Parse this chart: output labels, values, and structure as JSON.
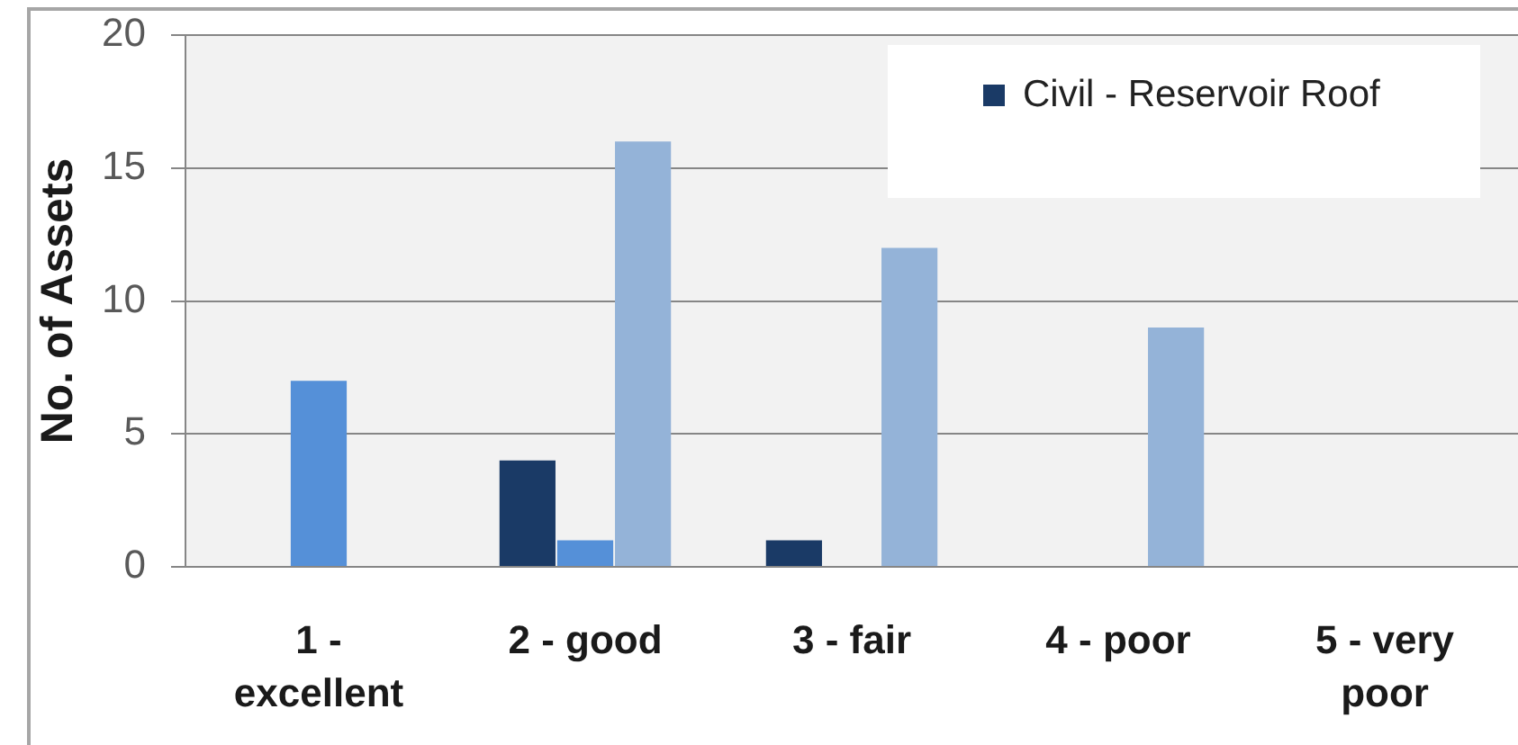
{
  "chart_data": {
    "type": "bar",
    "ylabel": "No. of Assets",
    "categories": [
      "1 - excellent",
      "2 - good",
      "3 - fair",
      "4 - poor",
      "5 - very poor"
    ],
    "series": [
      {
        "name": "Civil - Reservoir Roof",
        "color": "#1a3a66",
        "values": [
          0,
          4,
          1,
          0,
          0
        ]
      },
      {
        "color": "#5590d8",
        "values": [
          7,
          1,
          0,
          0,
          0
        ]
      },
      {
        "color": "#94b3d8",
        "values": [
          0,
          16,
          12,
          9,
          0
        ]
      }
    ],
    "ylim": [
      0,
      20
    ],
    "yticks": [
      0,
      5,
      10,
      15,
      20
    ],
    "grid": "y",
    "legend": "top right"
  }
}
